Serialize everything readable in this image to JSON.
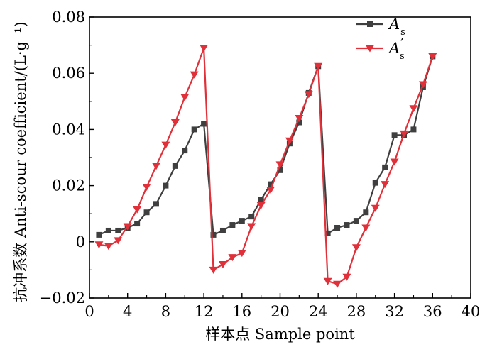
{
  "chart_data": {
    "type": "line",
    "xlabel": "样本点 Sample point",
    "ylabel": "抗冲系数 Anti-scour coefficient/(L·g⁻¹)",
    "xlim": [
      0,
      40
    ],
    "ylim": [
      -0.02,
      0.08
    ],
    "xticks": [
      0,
      4,
      8,
      12,
      16,
      20,
      24,
      28,
      32,
      36,
      40
    ],
    "yticks": [
      -0.02,
      0,
      0.02,
      0.04,
      0.06,
      0.08
    ],
    "ytick_labels": [
      "−0.02",
      "0",
      "0.02",
      "0.04",
      "0.06",
      "0.08"
    ],
    "legend_position": "top-right",
    "x": [
      1,
      2,
      3,
      4,
      5,
      6,
      7,
      8,
      9,
      10,
      11,
      12,
      13,
      14,
      15,
      16,
      17,
      18,
      19,
      20,
      21,
      22,
      23,
      24,
      25,
      26,
      27,
      28,
      29,
      30,
      31,
      32,
      33,
      34,
      35,
      36
    ],
    "series": [
      {
        "name": "As",
        "legend_main": "A",
        "legend_sub": "s",
        "legend_prime": "",
        "color": "#3f3f3f",
        "marker": "square",
        "values": [
          0.0025,
          0.004,
          0.004,
          0.005,
          0.0065,
          0.0105,
          0.0135,
          0.02,
          0.027,
          0.0325,
          0.04,
          0.042,
          0.0025,
          0.004,
          0.006,
          0.0075,
          0.009,
          0.015,
          0.0205,
          0.0255,
          0.035,
          0.0425,
          0.053,
          0.0625,
          0.003,
          0.005,
          0.006,
          0.0075,
          0.0105,
          0.021,
          0.0265,
          0.038,
          0.038,
          0.04,
          0.055,
          0.066
        ]
      },
      {
        "name": "As'",
        "legend_main": "A",
        "legend_sub": "s",
        "legend_prime": "′",
        "color": "#e0313a",
        "marker": "triangle-down",
        "values": [
          -0.001,
          -0.0015,
          0.0005,
          0.0055,
          0.0115,
          0.0195,
          0.027,
          0.0345,
          0.0425,
          0.0515,
          0.0595,
          0.069,
          -0.01,
          -0.008,
          -0.0055,
          -0.004,
          0.0055,
          0.013,
          0.0185,
          0.0275,
          0.036,
          0.044,
          0.0525,
          0.0625,
          -0.014,
          -0.015,
          -0.0125,
          -0.002,
          0.005,
          0.012,
          0.0205,
          0.0285,
          0.0385,
          0.0475,
          0.056,
          0.066
        ]
      }
    ]
  }
}
